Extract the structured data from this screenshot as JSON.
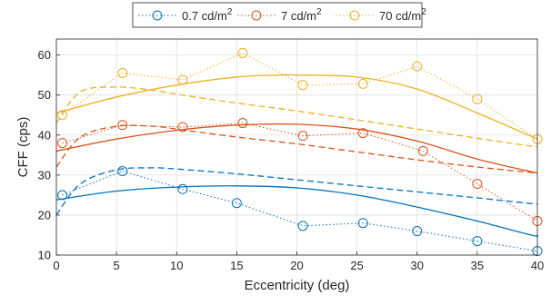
{
  "chart_data": {
    "type": "line",
    "xlabel": "Eccentricity (deg)",
    "ylabel": "CFF (cps)",
    "xlim": [
      0,
      40
    ],
    "ylim": [
      10,
      64
    ],
    "xticks": [
      0,
      5,
      10,
      15,
      20,
      25,
      30,
      35,
      40
    ],
    "yticks": [
      10,
      20,
      30,
      40,
      50,
      60
    ],
    "grid": true,
    "legend_position": "top-center, outside plot",
    "legend": [
      {
        "label": "0.7 cd/m",
        "sup": "2",
        "color": "#0072BD"
      },
      {
        "label": "7 cd/m",
        "sup": "2",
        "color": "#D95319"
      },
      {
        "label": "70 cd/m",
        "sup": "2",
        "color": "#EDB120"
      }
    ],
    "series": [
      {
        "name": "0.7 cd/m2",
        "color": "#0072BD",
        "measured": {
          "x": [
            0.5,
            5.5,
            10.5,
            15,
            20.5,
            25.5,
            30,
            35,
            40
          ],
          "y": [
            25,
            31,
            26.5,
            23,
            17.3,
            18,
            16,
            13.5,
            11
          ]
        },
        "fit_solid": {
          "x": [
            0,
            5,
            10,
            15,
            20,
            25,
            30,
            35,
            39.5,
            40
          ],
          "y": [
            23.8,
            26,
            27,
            27.3,
            26.8,
            25,
            22,
            18.5,
            15,
            15
          ]
        },
        "fit_dashed": {
          "x": [
            0,
            2,
            5,
            8,
            10,
            15,
            20,
            25,
            30,
            35,
            40
          ],
          "y": [
            20,
            27.8,
            31.3,
            31.8,
            31.5,
            30.3,
            28.8,
            27.3,
            25.8,
            24.3,
            22.7
          ]
        }
      },
      {
        "name": "7 cd/m2",
        "color": "#D95319",
        "measured": {
          "x": [
            0.5,
            5.5,
            10.5,
            15.5,
            20.5,
            25.5,
            30.5,
            35,
            40
          ],
          "y": [
            38,
            42.5,
            42,
            43,
            39.8,
            40.5,
            36,
            27.8,
            18.5
          ]
        },
        "fit_solid": {
          "x": [
            0,
            5,
            10,
            15,
            20,
            25,
            30,
            35,
            40
          ],
          "y": [
            36,
            39,
            41.2,
            42.5,
            42.7,
            41.5,
            38.5,
            34,
            30.5
          ]
        },
        "fit_dashed": {
          "x": [
            0,
            2,
            5,
            8,
            10,
            15,
            20,
            25,
            30,
            35,
            40
          ],
          "y": [
            32,
            39.5,
            42.2,
            42.2,
            41.5,
            39.5,
            37.8,
            35.8,
            33.8,
            32,
            30.5
          ]
        }
      },
      {
        "name": "70 cd/m2",
        "color": "#EDB120",
        "measured": {
          "x": [
            0.5,
            5.5,
            10.5,
            15.5,
            20.5,
            25.5,
            30,
            35,
            40
          ],
          "y": [
            45,
            55.5,
            53.8,
            60.5,
            52.5,
            52.8,
            57.2,
            49,
            39
          ]
        },
        "fit_solid": {
          "x": [
            0,
            5,
            10,
            15,
            18.5,
            20,
            25,
            30,
            35,
            40
          ],
          "y": [
            45.5,
            49.5,
            52.5,
            54.5,
            55,
            55,
            54.5,
            51.5,
            45.5,
            39
          ]
        },
        "fit_dashed": {
          "x": [
            0,
            2,
            5,
            8,
            10,
            15,
            20,
            25,
            30,
            35,
            40
          ],
          "y": [
            43,
            50.8,
            52,
            51.2,
            50.2,
            48,
            46,
            43.8,
            41.5,
            39.2,
            37
          ]
        }
      }
    ]
  }
}
